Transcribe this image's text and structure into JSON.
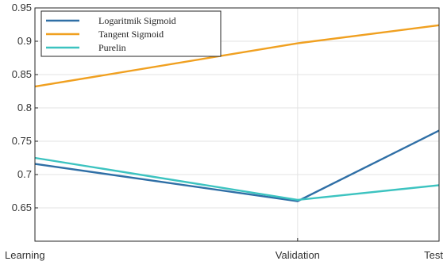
{
  "chart_data": {
    "type": "line",
    "categories": [
      "Learning",
      "Validation",
      "Test"
    ],
    "x": [
      0,
      0.65,
      1
    ],
    "series": [
      {
        "name": "Logaritmik Sigmoid",
        "color": "#2f6fa6",
        "values": [
          0.716,
          0.66,
          0.766
        ]
      },
      {
        "name": "Tangent Sigmoid",
        "color": "#f0a020",
        "values": [
          0.832,
          0.897,
          0.924
        ]
      },
      {
        "name": "Purelin",
        "color": "#3cc3c0",
        "values": [
          0.725,
          0.662,
          0.684
        ]
      }
    ],
    "ylim": [
      0.6,
      0.95
    ],
    "yticks": [
      0.65,
      0.7,
      0.75,
      0.8,
      0.85,
      0.9,
      0.95
    ],
    "ytick_labels": [
      "0.65",
      "0.7",
      "0.75",
      "0.8",
      "0.85",
      "0.9",
      "0.95"
    ],
    "grid": true,
    "legend": "top-left",
    "title": "",
    "xlabel": "",
    "ylabel": ""
  }
}
